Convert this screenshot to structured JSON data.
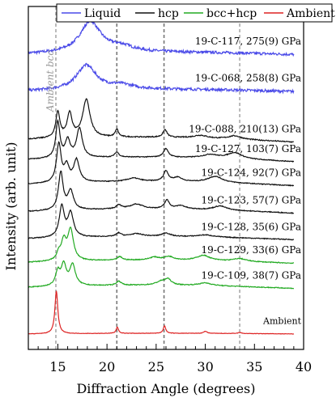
{
  "chart_data": {
    "type": "line",
    "xlabel": "Diffraction Angle (degrees)",
    "ylabel": "Intensity (arb. unit)",
    "xlim": [
      12,
      40
    ],
    "xticks": [
      15,
      20,
      25,
      30,
      35,
      40
    ],
    "yticks_shown": false,
    "legend": {
      "placement": "top",
      "entries": [
        {
          "name": "Liquid",
          "color": "#4a4ae8"
        },
        {
          "name": "hcp",
          "color": "#111111"
        },
        {
          "name": "bcc+hcp",
          "color": "#22aa22"
        },
        {
          "name": "Ambient",
          "color": "#dd2222"
        }
      ]
    },
    "reference_lines": [
      {
        "x": 14.8,
        "color": "#aaaaaa",
        "label": "Ambient bcc"
      },
      {
        "x": 21.0,
        "color": "#777777",
        "label": ""
      },
      {
        "x": 25.8,
        "color": "#777777",
        "label": ""
      },
      {
        "x": 33.5,
        "color": "#aaaaaa",
        "label": ""
      }
    ],
    "series": [
      {
        "label": "19-C-117, 275(9) GPa",
        "phase": "Liquid",
        "color": "#4a4ae8",
        "baseline": 0.857,
        "noise": 0.004,
        "peaks": [
          [
            18.3,
            0.09,
            1.3
          ],
          [
            21.5,
            0.015,
            1.5
          ]
        ],
        "bg": [
          0.004,
          0.006,
          -0.002
        ]
      },
      {
        "label": "19-C-068, 258(8) GPa",
        "phase": "Liquid",
        "color": "#4a4ae8",
        "baseline": 0.749,
        "noise": 0.004,
        "peaks": [
          [
            17.9,
            0.072,
            1.2
          ],
          [
            21.5,
            0.012,
            1.5
          ]
        ],
        "bg": [
          0.004,
          0.006,
          -0.002
        ]
      },
      {
        "label": "19-C-088, 210(13) GPa",
        "phase": "hcp",
        "color": "#111111",
        "baseline": 0.605,
        "noise": 0.0015,
        "peaks": [
          [
            15.0,
            0.075,
            0.25
          ],
          [
            16.2,
            0.07,
            0.3
          ],
          [
            17.9,
            0.11,
            0.45
          ],
          [
            21.0,
            0.022,
            0.2
          ],
          [
            25.9,
            0.022,
            0.25
          ],
          [
            29.5,
            0.008,
            0.8
          ],
          [
            33.0,
            0.01,
            0.8
          ]
        ],
        "bg": [
          0.008,
          0.01,
          -0.01
        ]
      },
      {
        "label": "19-C-127, 103(7) GPa",
        "phase": "hcp",
        "color": "#111111",
        "baseline": 0.548,
        "noise": 0.0012,
        "peaks": [
          [
            15.0,
            0.105,
            0.25
          ],
          [
            16.0,
            0.05,
            0.3
          ],
          [
            17.2,
            0.085,
            0.35
          ],
          [
            21.0,
            0.015,
            0.25
          ],
          [
            26.0,
            0.025,
            0.3
          ],
          [
            30.5,
            0.01,
            0.9
          ],
          [
            33.0,
            0.018,
            0.9
          ]
        ],
        "bg": [
          0.006,
          0.01,
          -0.008
        ]
      },
      {
        "label": "19-C-124, 92(7) GPa",
        "phase": "hcp",
        "color": "#111111",
        "baseline": 0.476,
        "noise": 0.0012,
        "peaks": [
          [
            15.1,
            0.112,
            0.28
          ],
          [
            15.9,
            0.045,
            0.3
          ],
          [
            16.9,
            0.065,
            0.35
          ],
          [
            22.7,
            0.01,
            0.8
          ],
          [
            26.0,
            0.03,
            0.3
          ],
          [
            27.2,
            0.012,
            0.5
          ],
          [
            31.0,
            0.018,
            0.9
          ]
        ],
        "bg": [
          0.006,
          0.01,
          -0.006
        ]
      },
      {
        "label": "19-C-123, 57(7) GPa",
        "phase": "hcp",
        "color": "#111111",
        "baseline": 0.396,
        "noise": 0.0012,
        "peaks": [
          [
            15.3,
            0.11,
            0.28
          ],
          [
            16.3,
            0.055,
            0.35
          ],
          [
            21.2,
            0.012,
            0.3
          ],
          [
            23.0,
            0.014,
            0.8
          ],
          [
            26.1,
            0.025,
            0.3
          ],
          [
            27.5,
            0.01,
            0.6
          ],
          [
            31.5,
            0.012,
            0.8
          ]
        ],
        "bg": [
          0.006,
          0.01,
          -0.006
        ]
      },
      {
        "label": "19-C-128, 35(6) GPa",
        "phase": "hcp",
        "color": "#111111",
        "baseline": 0.319,
        "noise": 0.0012,
        "peaks": [
          [
            15.4,
            0.09,
            0.3
          ],
          [
            16.3,
            0.07,
            0.35
          ],
          [
            21.2,
            0.01,
            0.3
          ],
          [
            23.0,
            0.008,
            0.8
          ],
          [
            26.0,
            0.01,
            0.5
          ],
          [
            30.0,
            0.006,
            1.0
          ]
        ],
        "bg": [
          0.004,
          0.008,
          -0.004
        ]
      },
      {
        "label": "19-C-129, 33(6) GPa",
        "phase": "bcc+hcp",
        "color": "#22aa22",
        "baseline": 0.25,
        "noise": 0.0012,
        "peaks": [
          [
            15.1,
            0.02,
            0.25
          ],
          [
            15.6,
            0.055,
            0.3
          ],
          [
            16.3,
            0.09,
            0.35
          ],
          [
            21.3,
            0.01,
            0.3
          ],
          [
            24.8,
            0.008,
            0.6
          ],
          [
            26.3,
            0.01,
            0.6
          ],
          [
            29.8,
            0.015,
            0.8
          ],
          [
            33.5,
            0.008,
            0.8
          ]
        ],
        "bg": [
          0.004,
          0.008,
          -0.004
        ]
      },
      {
        "label": "19-C-109, 38(7) GPa",
        "phase": "bcc+hcp",
        "color": "#22aa22",
        "baseline": 0.177,
        "noise": 0.0012,
        "peaks": [
          [
            15.0,
            0.04,
            0.28
          ],
          [
            15.6,
            0.06,
            0.3
          ],
          [
            16.5,
            0.06,
            0.35
          ],
          [
            21.2,
            0.012,
            0.3
          ],
          [
            25.5,
            0.01,
            0.6
          ],
          [
            26.2,
            0.016,
            0.4
          ],
          [
            30.0,
            0.008,
            0.8
          ]
        ],
        "bg": [
          0.004,
          0.008,
          -0.004
        ]
      },
      {
        "label": "Ambient",
        "phase": "Ambient",
        "color": "#dd2222",
        "baseline": 0.045,
        "noise": 0.0006,
        "peaks": [
          [
            14.85,
            0.125,
            0.18
          ],
          [
            21.05,
            0.018,
            0.15
          ],
          [
            25.85,
            0.022,
            0.15
          ],
          [
            30.0,
            0.006,
            0.2
          ],
          [
            33.5,
            0.003,
            0.2
          ]
        ],
        "bg": [
          0.0,
          0.002,
          0.0
        ]
      }
    ]
  }
}
